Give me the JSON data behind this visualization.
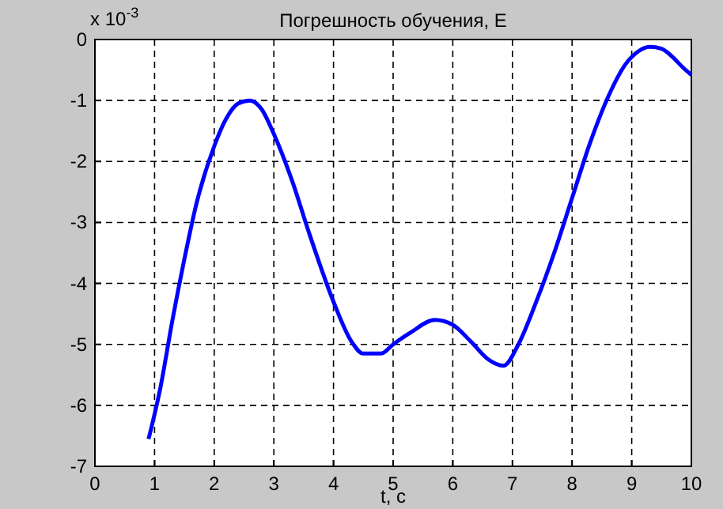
{
  "chart_data": {
    "type": "line",
    "title": "Погрешность обучения, E",
    "xlabel": "t,  c",
    "annotations": [
      "x 10$^{-3}$"
    ],
    "x": [
      0.9,
      1.1,
      1.3,
      1.5,
      1.7,
      2.0,
      2.2,
      2.4,
      2.6,
      2.8,
      3.0,
      3.3,
      3.6,
      4.0,
      4.3,
      4.5,
      4.8,
      5.0,
      5.3,
      5.7,
      6.0,
      6.3,
      6.6,
      6.85,
      7.1,
      7.4,
      7.7,
      8.0,
      8.3,
      8.6,
      8.9,
      9.1,
      9.3,
      9.5,
      9.7,
      9.85,
      10.0
    ],
    "series": [
      {
        "color": "#0000ff",
        "values": [
          -6.55,
          -5.7,
          -4.6,
          -3.6,
          -2.7,
          -1.75,
          -1.3,
          -1.05,
          -1.0,
          -1.15,
          -1.55,
          -2.3,
          -3.2,
          -4.3,
          -4.95,
          -5.15,
          -5.15,
          -5.0,
          -4.8,
          -4.6,
          -4.68,
          -4.95,
          -5.25,
          -5.35,
          -5.0,
          -4.3,
          -3.5,
          -2.6,
          -1.7,
          -0.95,
          -0.4,
          -0.2,
          -0.12,
          -0.15,
          -0.3,
          -0.45,
          -0.58
        ]
      }
    ],
    "xlim": [
      0,
      10
    ],
    "xticks": [
      0,
      1,
      2,
      3,
      4,
      5,
      6,
      7,
      8,
      9,
      10
    ],
    "ylim": [
      -7,
      0
    ],
    "yticks": [
      -7,
      -6,
      -5,
      -4,
      -3,
      -2,
      -1,
      0
    ],
    "grid": true,
    "line_style": "solid",
    "marker": "none"
  }
}
